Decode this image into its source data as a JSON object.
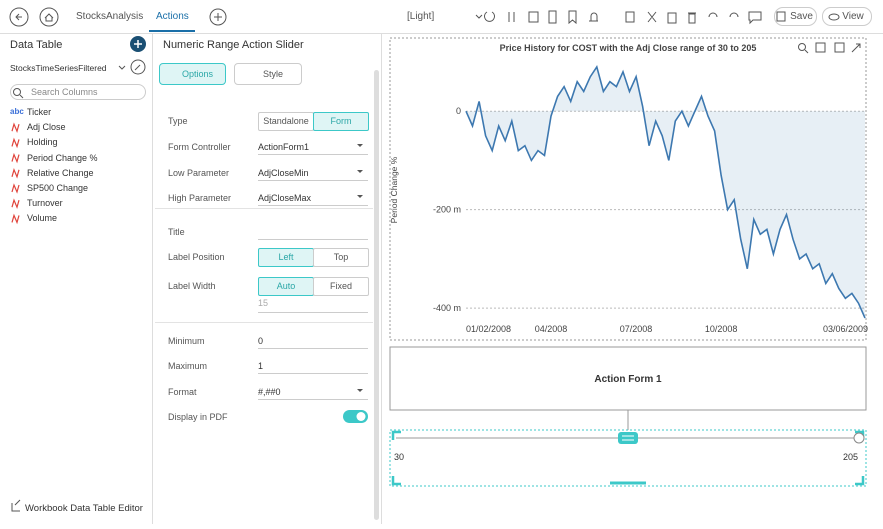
{
  "topbar": {
    "tabs": [
      "StocksAnalysis",
      "Actions"
    ],
    "theme": "[Light]",
    "save": "Save",
    "view": "View"
  },
  "left": {
    "title": "Data Table",
    "table": "StocksTimeSeriesFiltered",
    "search": "Search Columns",
    "columns": [
      {
        "kind": "abc",
        "name": "Ticker"
      },
      {
        "name": "Adj Close"
      },
      {
        "name": "Holding"
      },
      {
        "name": "Period Change %"
      },
      {
        "name": "Relative Change"
      },
      {
        "name": "SP500 Change"
      },
      {
        "name": "Turnover"
      },
      {
        "name": "Volume"
      }
    ],
    "footer": "Workbook Data Table Editor"
  },
  "middle": {
    "title": "Numeric Range Action Slider",
    "tabs": [
      "Options",
      "Style"
    ],
    "rows": [
      {
        "label": "Type",
        "options": [
          "Standalone",
          "Form"
        ],
        "active": 1
      },
      {
        "label": "Form Controller",
        "select": "ActionForm1"
      },
      {
        "label": "Low Parameter",
        "select": "AdjCloseMin"
      },
      {
        "label": "High Parameter",
        "select": "AdjCloseMax"
      },
      {
        "label": "Title"
      },
      {
        "label": "Label Position",
        "options": [
          "Left",
          "Top"
        ],
        "active": 0
      },
      {
        "label": "Label Width",
        "options": [
          "Auto",
          "Fixed"
        ],
        "active": 0,
        "extra": "15"
      },
      {
        "label": "Minimum",
        "input": "0"
      },
      {
        "label": "Maximum",
        "input": "1"
      },
      {
        "label": "Format",
        "select": "#,##0"
      },
      {
        "label": "Display in PDF",
        "toggle": true
      }
    ]
  },
  "chart_data": {
    "type": "line",
    "title": "Price History for COST with the Adj Close range of 30 to 205",
    "y_label": "Period Change %",
    "categories": [
      "01/02/2008",
      null,
      null,
      null,
      null,
      null,
      null,
      null,
      null,
      null,
      null,
      null,
      null,
      "04/2008",
      null,
      null,
      null,
      null,
      null,
      null,
      null,
      null,
      null,
      null,
      null,
      null,
      "07/2008",
      null,
      null,
      null,
      null,
      null,
      null,
      null,
      null,
      null,
      null,
      null,
      null,
      "10/2008",
      null,
      null,
      null,
      null,
      null,
      null,
      null,
      null,
      null,
      null,
      null,
      null,
      null,
      null,
      null,
      null,
      null,
      null,
      null,
      null,
      null,
      "03/06/2009"
    ],
    "series": [
      {
        "name": "Period Change %",
        "color": "#3d78b0",
        "values": [
          0,
          -0.03,
          0.02,
          -0.05,
          -0.08,
          -0.03,
          -0.06,
          -0.02,
          -0.08,
          -0.07,
          -0.1,
          -0.08,
          -0.09,
          -0.01,
          0.03,
          0.05,
          0.02,
          0.06,
          0.04,
          0.07,
          0.09,
          0.04,
          0.06,
          0.05,
          0.08,
          0.04,
          0.07,
          0.01,
          -0.07,
          -0.02,
          -0.05,
          -0.1,
          -0.02,
          0,
          -0.03,
          0,
          0.03,
          -0.01,
          -0.04,
          -0.13,
          -0.2,
          -0.18,
          -0.26,
          -0.32,
          -0.22,
          -0.25,
          -0.24,
          -0.29,
          -0.24,
          -0.21,
          -0.26,
          -0.3,
          -0.29,
          -0.32,
          -0.31,
          -0.35,
          -0.33,
          -0.36,
          -0.38,
          -0.37,
          -0.39,
          -0.42
        ]
      }
    ],
    "ylim": [
      -0.42,
      0.104
    ],
    "yticks": [
      0,
      {
        "value": -0.2,
        "label": "-200 m"
      },
      {
        "value": -0.4,
        "label": "-400 m"
      }
    ],
    "grid": true,
    "area": true
  },
  "form": {
    "title": "Action Form 1"
  },
  "slider": {
    "min": 30,
    "max": 205
  }
}
